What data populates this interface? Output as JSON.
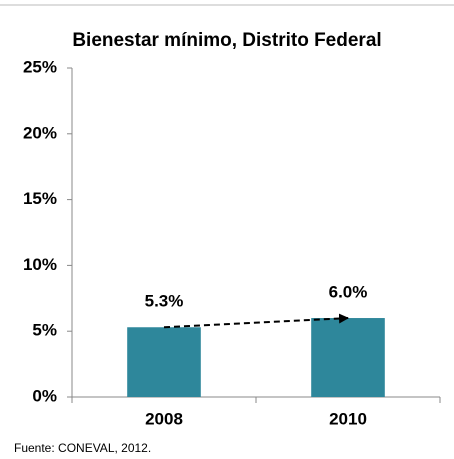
{
  "chart_data": {
    "type": "bar",
    "title": "Bienestar mínimo, Distrito Federal",
    "categories": [
      "2008",
      "2010"
    ],
    "values": [
      5.3,
      6.0
    ],
    "value_labels": [
      "5.3%",
      "6.0%"
    ],
    "color": "#2e879b",
    "ylim": [
      0,
      25
    ],
    "yticks": [
      {
        "value": 0,
        "label": "0%"
      },
      {
        "value": 5,
        "label": "5%"
      },
      {
        "value": 10,
        "label": "10%"
      },
      {
        "value": 15,
        "label": "15%"
      },
      {
        "value": 20,
        "label": "20%"
      },
      {
        "value": 25,
        "label": "25%"
      }
    ],
    "source": "Fuente: CONEVAL, 2012."
  }
}
